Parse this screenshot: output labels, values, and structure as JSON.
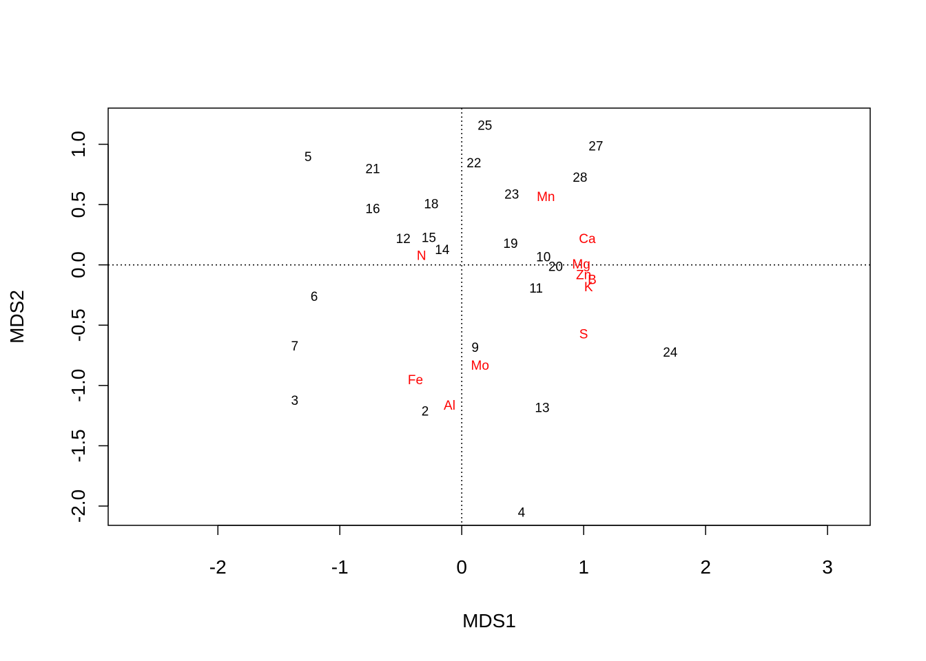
{
  "chart_data": {
    "type": "scatter",
    "xlabel": "MDS1",
    "ylabel": "MDS2",
    "xlim": [
      -2.9,
      3.35
    ],
    "ylim": [
      -2.16,
      1.3
    ],
    "x_ticks": [
      -2,
      -1,
      0,
      1,
      2,
      3
    ],
    "y_ticks": [
      -2.0,
      -1.5,
      -1.0,
      -0.5,
      0.0,
      0.5,
      1.0
    ],
    "x_tick_labels": [
      "-2",
      "-1",
      "0",
      "1",
      "2",
      "3"
    ],
    "y_tick_labels": [
      "-2.0",
      "-1.5",
      "-1.0",
      "-0.5",
      "0.0",
      "0.5",
      "1.0"
    ],
    "reference_lines": {
      "x": 0,
      "y": 0,
      "style": "dotted"
    },
    "grid": false,
    "series": [
      {
        "color": "#000000",
        "points": [
          {
            "label": "25",
            "x": 0.19,
            "y": 1.16
          },
          {
            "label": "27",
            "x": 1.1,
            "y": 0.99
          },
          {
            "label": "5",
            "x": -1.26,
            "y": 0.9
          },
          {
            "label": "22",
            "x": 0.1,
            "y": 0.85
          },
          {
            "label": "21",
            "x": -0.73,
            "y": 0.8
          },
          {
            "label": "28",
            "x": 0.97,
            "y": 0.73
          },
          {
            "label": "23",
            "x": 0.41,
            "y": 0.59
          },
          {
            "label": "18",
            "x": -0.25,
            "y": 0.51
          },
          {
            "label": "16",
            "x": -0.73,
            "y": 0.47
          },
          {
            "label": "12",
            "x": -0.48,
            "y": 0.22
          },
          {
            "label": "15",
            "x": -0.27,
            "y": 0.23
          },
          {
            "label": "19",
            "x": 0.4,
            "y": 0.18
          },
          {
            "label": "14",
            "x": -0.16,
            "y": 0.13
          },
          {
            "label": "10",
            "x": 0.67,
            "y": 0.07
          },
          {
            "label": "20",
            "x": 0.77,
            "y": -0.01
          },
          {
            "label": "11",
            "x": 0.61,
            "y": -0.19
          },
          {
            "label": "6",
            "x": -1.21,
            "y": -0.26
          },
          {
            "label": "7",
            "x": -1.37,
            "y": -0.67
          },
          {
            "label": "9",
            "x": 0.11,
            "y": -0.68
          },
          {
            "label": "24",
            "x": 1.71,
            "y": -0.72
          },
          {
            "label": "3",
            "x": -1.37,
            "y": -1.12
          },
          {
            "label": "13",
            "x": 0.66,
            "y": -1.18
          },
          {
            "label": "2",
            "x": -0.3,
            "y": -1.21
          },
          {
            "label": "4",
            "x": 0.49,
            "y": -2.05
          }
        ]
      },
      {
        "color": "#ff0000",
        "points": [
          {
            "label": "Mn",
            "x": 0.69,
            "y": 0.57
          },
          {
            "label": "Ca",
            "x": 1.03,
            "y": 0.22
          },
          {
            "label": "N",
            "x": -0.33,
            "y": 0.08
          },
          {
            "label": "Mg",
            "x": 0.98,
            "y": 0.01
          },
          {
            "label": "Zn",
            "x": 1.0,
            "y": -0.08
          },
          {
            "label": "B",
            "x": 1.07,
            "y": -0.12
          },
          {
            "label": "K",
            "x": 1.04,
            "y": -0.18
          },
          {
            "label": "S",
            "x": 1.0,
            "y": -0.57
          },
          {
            "label": "Mo",
            "x": 0.15,
            "y": -0.83
          },
          {
            "label": "Fe",
            "x": -0.38,
            "y": -0.95
          },
          {
            "label": "Al",
            "x": -0.1,
            "y": -1.16
          }
        ]
      }
    ]
  }
}
